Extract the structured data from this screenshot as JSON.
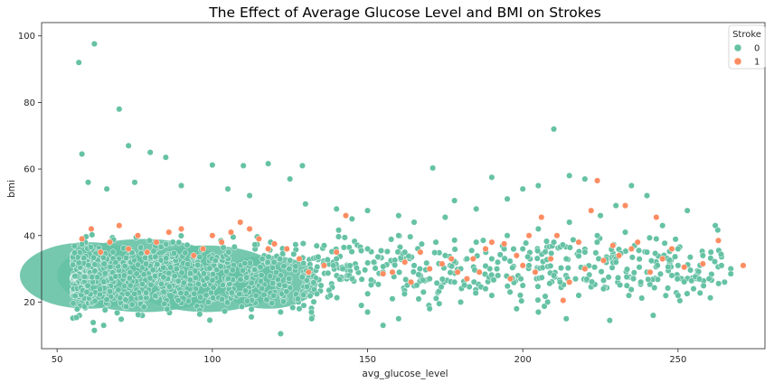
{
  "chart_data": {
    "type": "scatter",
    "title": "The Effect of Average Glucose Level and BMI on Strokes",
    "xlabel": "avg_glucose_level",
    "ylabel": "bmi",
    "xlim": [
      45,
      278
    ],
    "ylim": [
      6,
      104
    ],
    "xticks": [
      50,
      100,
      150,
      200,
      250
    ],
    "yticks": [
      20,
      40,
      60,
      80,
      100
    ],
    "grid": false,
    "legend": {
      "title": "Stroke",
      "placement": "top-right",
      "entries": [
        {
          "label": "0",
          "color": "#66c2a5"
        },
        {
          "label": "1",
          "color": "#fc8d62"
        }
      ]
    },
    "series": [
      {
        "name": "0",
        "color": "#66c2a5",
        "points": [
          [
            57,
            92
          ],
          [
            62,
            97.6
          ],
          [
            70,
            78
          ],
          [
            58,
            64.5
          ],
          [
            73,
            67
          ],
          [
            80,
            65
          ],
          [
            85,
            63.5
          ],
          [
            100,
            61.2
          ],
          [
            118,
            61.6
          ],
          [
            129,
            61
          ],
          [
            110,
            61
          ],
          [
            125,
            57
          ],
          [
            171,
            60.3
          ],
          [
            210,
            72
          ],
          [
            60,
            56
          ],
          [
            66,
            54
          ],
          [
            75,
            56
          ],
          [
            90,
            55
          ],
          [
            105,
            54
          ],
          [
            112,
            52
          ],
          [
            130,
            49.5
          ],
          [
            190,
            57.5
          ],
          [
            205,
            55
          ],
          [
            215,
            58
          ],
          [
            220,
            57
          ],
          [
            235,
            55
          ],
          [
            240,
            52
          ],
          [
            253,
            47.5
          ],
          [
            200,
            54
          ],
          [
            195,
            51
          ],
          [
            178,
            50.5
          ],
          [
            140,
            48
          ],
          [
            145,
            45
          ],
          [
            150,
            47.5
          ],
          [
            160,
            46
          ],
          [
            165,
            44
          ],
          [
            175,
            45.5
          ],
          [
            185,
            48
          ],
          [
            230,
            49
          ],
          [
            245,
            43
          ],
          [
            262,
            43
          ],
          [
            264,
            31
          ],
          [
            267,
            30
          ],
          [
            267,
            28.5
          ],
          [
            260,
            27
          ],
          [
            265,
            26
          ],
          [
            255,
            24
          ],
          [
            250,
            22
          ],
          [
            228,
            14.5
          ],
          [
            242,
            16
          ],
          [
            214,
            15
          ],
          [
            205,
            17
          ],
          [
            122,
            10.5
          ],
          [
            62,
            11.5
          ],
          [
            65,
            13
          ],
          [
            155,
            13
          ],
          [
            160,
            15
          ],
          [
            150,
            17
          ],
          [
            170,
            18
          ],
          [
            180,
            20
          ],
          [
            190,
            22
          ],
          [
            200,
            25
          ],
          [
            210,
            28
          ],
          [
            220,
            30
          ],
          [
            230,
            33
          ],
          [
            240,
            35
          ],
          [
            250,
            36
          ],
          [
            185,
            38
          ],
          [
            195,
            40
          ],
          [
            205,
            42
          ],
          [
            215,
            44
          ],
          [
            225,
            46
          ],
          [
            175,
            34
          ],
          [
            165,
            31
          ],
          [
            155,
            29
          ],
          [
            145,
            27
          ],
          [
            135,
            25
          ],
          [
            140,
            33
          ],
          [
            150,
            36
          ],
          [
            160,
            40
          ],
          [
            170,
            27
          ],
          [
            180,
            30
          ],
          [
            190,
            33
          ],
          [
            200,
            36
          ],
          [
            210,
            38
          ],
          [
            220,
            35
          ],
          [
            230,
            32
          ],
          [
            240,
            29
          ],
          [
            250,
            31
          ],
          [
            258,
            34
          ],
          [
            238,
            26
          ],
          [
            226,
            24
          ],
          [
            218,
            22
          ],
          [
            208,
            20
          ],
          [
            198,
            18
          ],
          [
            188,
            24
          ],
          [
            178,
            26
          ],
          [
            168,
            23
          ],
          [
            158,
            21
          ],
          [
            148,
            19
          ],
          [
            138,
            22
          ],
          [
            132,
            15
          ],
          [
            128,
            18
          ],
          [
            212,
            26
          ],
          [
            202,
            31
          ],
          [
            192,
            28
          ],
          [
            182,
            33
          ],
          [
            172,
            38
          ],
          [
            162,
            35
          ],
          [
            152,
            32
          ],
          [
            142,
            30
          ],
          [
            136,
            37
          ],
          [
            233,
            41
          ],
          [
            243,
            39
          ],
          [
            248,
            28
          ],
          [
            236,
            37
          ],
          [
            224,
            40
          ],
          [
            214,
            33
          ],
          [
            204,
            29
          ],
          [
            194,
            36
          ]
        ]
      },
      {
        "name": "1",
        "color": "#fc8d62",
        "points": [
          [
            271,
            31
          ],
          [
            263,
            38.5
          ],
          [
            258,
            31.5
          ],
          [
            252,
            30.5
          ],
          [
            248,
            36
          ],
          [
            245,
            33
          ],
          [
            243,
            45.5
          ],
          [
            241,
            29
          ],
          [
            237,
            38
          ],
          [
            235,
            36
          ],
          [
            233,
            49
          ],
          [
            231,
            34
          ],
          [
            229,
            37
          ],
          [
            226,
            32.5
          ],
          [
            224,
            56.5
          ],
          [
            222,
            47.5
          ],
          [
            220,
            30
          ],
          [
            218,
            38
          ],
          [
            215,
            26
          ],
          [
            213,
            20.5
          ],
          [
            211,
            40
          ],
          [
            209,
            33
          ],
          [
            206,
            45.5
          ],
          [
            204,
            29
          ],
          [
            202,
            40
          ],
          [
            200,
            31
          ],
          [
            198,
            34
          ],
          [
            196,
            27
          ],
          [
            194,
            37.5
          ],
          [
            190,
            38
          ],
          [
            188,
            36
          ],
          [
            186,
            29
          ],
          [
            184,
            33
          ],
          [
            182,
            27
          ],
          [
            179,
            29
          ],
          [
            177,
            33
          ],
          [
            174,
            31.5
          ],
          [
            170,
            30
          ],
          [
            167,
            35
          ],
          [
            164,
            26
          ],
          [
            162,
            32
          ],
          [
            158,
            29
          ],
          [
            155,
            28.5
          ],
          [
            143,
            46
          ],
          [
            140,
            35
          ],
          [
            136,
            31
          ],
          [
            131,
            29
          ],
          [
            128,
            33
          ],
          [
            124,
            36
          ],
          [
            120,
            37.5
          ],
          [
            118,
            36
          ],
          [
            115,
            39
          ],
          [
            112,
            42
          ],
          [
            109,
            44
          ],
          [
            106,
            41
          ],
          [
            103,
            38
          ],
          [
            100,
            40
          ],
          [
            97,
            36
          ],
          [
            94,
            34
          ],
          [
            90,
            42
          ],
          [
            86,
            41
          ],
          [
            82,
            38
          ],
          [
            79,
            35
          ],
          [
            76,
            40
          ],
          [
            73,
            36
          ],
          [
            70,
            43
          ],
          [
            67,
            38
          ],
          [
            64,
            35
          ],
          [
            61,
            42
          ],
          [
            58,
            39
          ]
        ]
      }
    ]
  }
}
